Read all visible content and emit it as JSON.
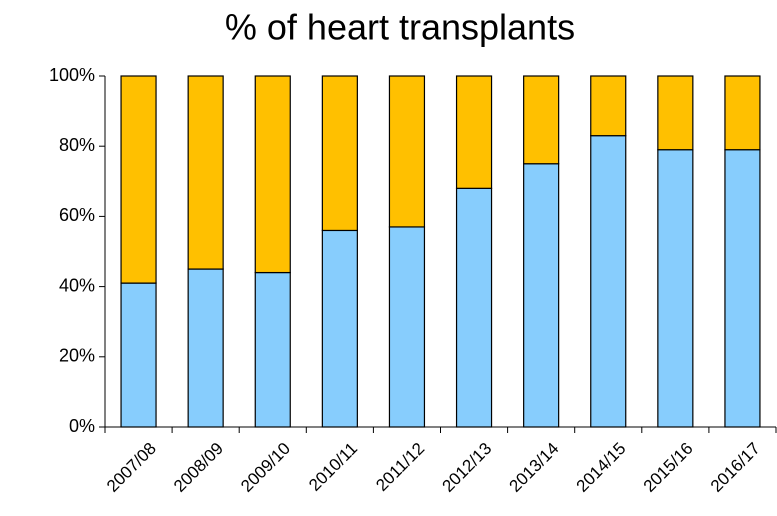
{
  "chart_data": {
    "type": "stacked-bar",
    "title": "% of heart transplants",
    "categories": [
      "2007/08",
      "2008/09",
      "2009/10",
      "2010/11",
      "2011/12",
      "2012/13",
      "2013/14",
      "2014/15",
      "2015/16",
      "2016/17"
    ],
    "series": [
      {
        "color": "#87cdfd",
        "values": [
          41,
          45,
          44,
          56,
          57,
          68,
          75,
          83,
          79,
          79
        ]
      },
      {
        "color": "#ffc000",
        "values": [
          59,
          55,
          56,
          44,
          43,
          32,
          25,
          17,
          21,
          21
        ]
      }
    ],
    "ylim": [
      0,
      100
    ],
    "yticks": [
      {
        "value": 0,
        "label": "0%"
      },
      {
        "value": 20,
        "label": "20%"
      },
      {
        "value": 40,
        "label": "40%"
      },
      {
        "value": 60,
        "label": "60%"
      },
      {
        "value": 80,
        "label": "80%"
      },
      {
        "value": 100,
        "label": "100%"
      }
    ]
  }
}
